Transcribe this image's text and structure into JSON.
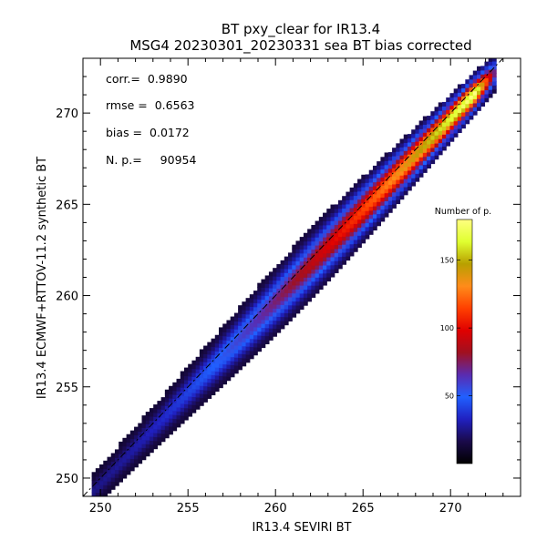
{
  "chart_data": {
    "type": "heatmap",
    "title": "BT pxy_clear for IR13.4",
    "subtitle": "MSG4 20230301_20230331 sea BT bias corrected",
    "xlabel": "IR13.4 SEVIRI BT",
    "ylabel": "IR13.4 ECMWF+RTTOV-11.2 synthetic BT",
    "xlim": [
      249,
      274
    ],
    "ylim": [
      249,
      273
    ],
    "x_ticks": [
      250,
      255,
      260,
      265,
      270
    ],
    "y_ticks": [
      250,
      255,
      260,
      265,
      270
    ],
    "grid": false,
    "reference_line": {
      "style": "dash-dot",
      "from": [
        249,
        249
      ],
      "to": [
        274,
        274
      ]
    },
    "stats": [
      {
        "label": "corr.=",
        "value": "0.9890"
      },
      {
        "label": "rmse =",
        "value": "0.6563"
      },
      {
        "label": "bias =",
        "value": "0.0172"
      },
      {
        "label": "N. p.=",
        "value": "90954"
      }
    ],
    "density": {
      "x_range": [
        249.5,
        272.5
      ],
      "ridge_bias": -0.3,
      "peak_x": 269.5,
      "max_count": 180
    },
    "colorbar": {
      "title": "Number of p.",
      "range": [
        0,
        180
      ],
      "ticks": [
        50,
        100,
        150
      ],
      "colors": [
        "#000000",
        "#1a0a4a",
        "#2020c0",
        "#2060ff",
        "#5a2bb0",
        "#a01020",
        "#e00000",
        "#ff4000",
        "#ff8c1a",
        "#b8a000",
        "#e0ff30",
        "#ffff80"
      ],
      "placement": "right-inside"
    }
  }
}
